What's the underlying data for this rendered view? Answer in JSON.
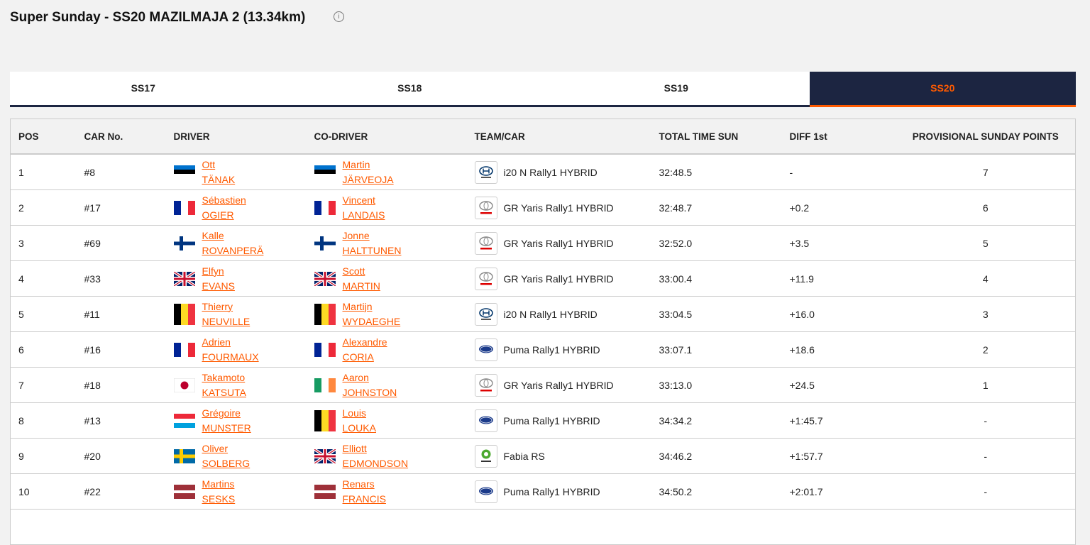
{
  "header": {
    "title": "Super Sunday - SS20 MAZILMAJA 2 (13.34km)"
  },
  "tabs": [
    "SS17",
    "SS18",
    "SS19",
    "SS20"
  ],
  "table": {
    "columns": [
      "POS",
      "CAR No.",
      "DRIVER",
      "CO-DRIVER",
      "TEAM/CAR",
      "TOTAL TIME SUN",
      "DIFF 1st",
      "PROVISIONAL SUNDAY POINTS"
    ],
    "rows": [
      {
        "pos": 1,
        "car": "#8",
        "driver": [
          "Ott",
          "TÄNAK"
        ],
        "co_driver": [
          "Martin",
          "JÄRVEOJA"
        ],
        "team": "i20 N Rally1 HYBRID",
        "time": "32:48.5",
        "diff": "-",
        "points": 7
      },
      {
        "pos": 2,
        "car": "#17",
        "driver": [
          "Sébastien",
          "OGIER"
        ],
        "co_driver": [
          "Vincent",
          "LANDAIS"
        ],
        "team": "GR Yaris Rally1 HYBRID",
        "time": "32:48.7",
        "diff": "+0.2",
        "points": 6
      },
      {
        "pos": 3,
        "car": "#69",
        "driver": [
          "Kalle",
          "ROVANPERÄ"
        ],
        "co_driver": [
          "Jonne",
          "HALTTUNEN"
        ],
        "team": "GR Yaris Rally1 HYBRID",
        "time": "32:52.0",
        "diff": "+3.5",
        "points": 5
      },
      {
        "pos": 4,
        "car": "#33",
        "driver": [
          "Elfyn",
          "EVANS"
        ],
        "co_driver": [
          "Scott",
          "MARTIN"
        ],
        "team": "GR Yaris Rally1 HYBRID",
        "time": "33:00.4",
        "diff": "+11.9",
        "points": 4
      },
      {
        "pos": 5,
        "car": "#11",
        "driver": [
          "Thierry",
          "NEUVILLE"
        ],
        "co_driver": [
          "Martijn",
          "WYDAEGHE"
        ],
        "team": "i20 N Rally1 HYBRID",
        "time": "33:04.5",
        "diff": "+16.0",
        "points": 3
      },
      {
        "pos": 6,
        "car": "#16",
        "driver": [
          "Adrien",
          "FOURMAUX"
        ],
        "co_driver": [
          "Alexandre",
          "CORIA"
        ],
        "team": "Puma Rally1 HYBRID",
        "time": "33:07.1",
        "diff": "+18.6",
        "points": 2
      },
      {
        "pos": 7,
        "car": "#18",
        "driver": [
          "Takamoto",
          "KATSUTA"
        ],
        "co_driver": [
          "Aaron",
          "JOHNSTON"
        ],
        "team": "GR Yaris Rally1 HYBRID",
        "time": "33:13.0",
        "diff": "+24.5",
        "points": 1
      },
      {
        "pos": 8,
        "car": "#13",
        "driver": [
          "Grégoire",
          "MUNSTER"
        ],
        "co_driver": [
          "Louis",
          "LOUKA"
        ],
        "team": "Puma Rally1 HYBRID",
        "time": "34:34.2",
        "diff": "+1:45.7",
        "points": "-"
      },
      {
        "pos": 9,
        "car": "#20",
        "driver": [
          "Oliver",
          "SOLBERG"
        ],
        "co_driver": [
          "Elliott",
          "EDMONDSON"
        ],
        "team": "Fabia RS",
        "time": "34:46.2",
        "diff": "+1:57.7",
        "points": "-"
      },
      {
        "pos": 10,
        "car": "#22",
        "driver": [
          "Martins",
          "SESKS"
        ],
        "co_driver": [
          "Renars",
          "FRANCIS"
        ],
        "team": "Puma Rally1 HYBRID",
        "time": "34:50.2",
        "diff": "+2:01.7",
        "points": "-"
      }
    ]
  }
}
